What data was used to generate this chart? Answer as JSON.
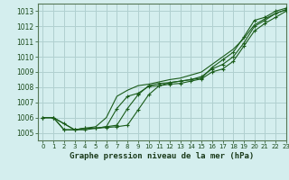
{
  "title": "Graphe pression niveau de la mer (hPa)",
  "background_color": "#d4eeee",
  "grid_color": "#b0d0d0",
  "line_color": "#1a5c1a",
  "xlim": [
    -0.5,
    23
  ],
  "ylim": [
    1004.5,
    1013.5
  ],
  "yticks": [
    1005,
    1006,
    1007,
    1008,
    1009,
    1010,
    1011,
    1012,
    1013
  ],
  "xticks": [
    0,
    1,
    2,
    3,
    4,
    5,
    6,
    7,
    8,
    9,
    10,
    11,
    12,
    13,
    14,
    15,
    16,
    17,
    18,
    19,
    20,
    21,
    22,
    23
  ],
  "series": [
    {
      "name": "line1_smooth",
      "x": [
        0,
        1,
        2,
        3,
        4,
        5,
        6,
        7,
        8,
        9,
        10,
        11,
        12,
        13,
        14,
        15,
        16,
        17,
        18,
        19,
        20,
        21,
        22,
        23
      ],
      "y": [
        1006.0,
        1006.0,
        1005.6,
        1005.2,
        1005.3,
        1005.4,
        1006.0,
        1007.4,
        1007.8,
        1008.1,
        1008.2,
        1008.35,
        1008.5,
        1008.6,
        1008.8,
        1009.0,
        1009.5,
        1010.0,
        1010.5,
        1011.2,
        1012.1,
        1012.5,
        1012.85,
        1013.1
      ],
      "marker": false
    },
    {
      "name": "line2_markers",
      "x": [
        0,
        1,
        2,
        3,
        4,
        5,
        6,
        7,
        8,
        9,
        10,
        11,
        12,
        13,
        14,
        15,
        16,
        17,
        18,
        19,
        20,
        21,
        22,
        23
      ],
      "y": [
        1006.0,
        1006.0,
        1005.2,
        1005.2,
        1005.3,
        1005.3,
        1005.4,
        1005.5,
        1006.6,
        1007.5,
        1008.1,
        1008.25,
        1008.3,
        1008.4,
        1008.5,
        1008.7,
        1009.2,
        1009.5,
        1010.0,
        1010.9,
        1012.0,
        1012.4,
        1012.85,
        1013.1
      ],
      "marker": true
    },
    {
      "name": "line3_diverge",
      "x": [
        0,
        1,
        2,
        3,
        4,
        5,
        6,
        7,
        8,
        9,
        10,
        11,
        12,
        13,
        14,
        15,
        16,
        17,
        18,
        19,
        20,
        21,
        22,
        23
      ],
      "y": [
        1006.0,
        1006.0,
        1005.2,
        1005.2,
        1005.3,
        1005.3,
        1005.4,
        1006.6,
        1007.4,
        1007.6,
        1008.05,
        1008.1,
        1008.2,
        1008.25,
        1008.4,
        1008.55,
        1009.0,
        1009.2,
        1009.7,
        1010.7,
        1011.7,
        1012.2,
        1012.6,
        1013.0
      ],
      "marker": true
    },
    {
      "name": "line4_low",
      "x": [
        0,
        1,
        2,
        3,
        4,
        5,
        6,
        7,
        8,
        9,
        10,
        11,
        12,
        13,
        14,
        15,
        16,
        17,
        18,
        19,
        20,
        21,
        22,
        23
      ],
      "y": [
        1006.0,
        1006.0,
        1005.6,
        1005.2,
        1005.2,
        1005.3,
        1005.35,
        1005.4,
        1005.5,
        1006.5,
        1007.5,
        1008.1,
        1008.3,
        1008.4,
        1008.5,
        1008.6,
        1009.3,
        1009.8,
        1010.3,
        1011.3,
        1012.4,
        1012.6,
        1013.0,
        1013.2
      ],
      "marker": true
    }
  ]
}
